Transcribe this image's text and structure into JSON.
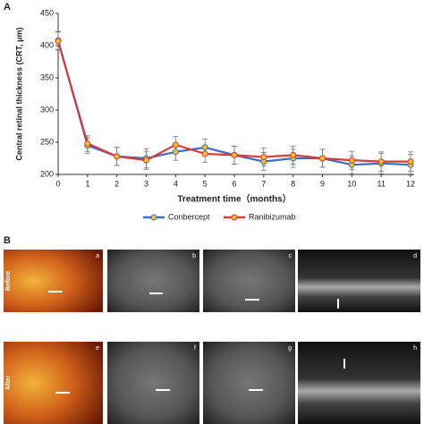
{
  "chart_data": {
    "type": "line",
    "panel": "A",
    "x_label": "Treatment time（months）",
    "y_label": "Central retinal thickness (CRT, μm)",
    "x": [
      0,
      1,
      2,
      3,
      4,
      5,
      6,
      7,
      8,
      9,
      10,
      11,
      12
    ],
    "xlim": [
      0,
      12
    ],
    "xticks": [
      0,
      1,
      2,
      3,
      4,
      5,
      6,
      7,
      8,
      9,
      10,
      11,
      12
    ],
    "ylim": [
      200,
      450
    ],
    "yticks": [
      200,
      250,
      300,
      350,
      400,
      450
    ],
    "marker_color": "#f2c523",
    "error_color": "#777777",
    "legend": "bottom",
    "series": [
      {
        "name": "Conbercept",
        "color": "#3a6fc4",
        "values": [
          408,
          245,
          228,
          225,
          235,
          242,
          230,
          220,
          225,
          225,
          215,
          217,
          215
        ],
        "errors": [
          14,
          12,
          14,
          15,
          13,
          13,
          14,
          14,
          14,
          14,
          14,
          16,
          16
        ]
      },
      {
        "name": "Ranibizumab",
        "color": "#d93a3a",
        "values": [
          407,
          248,
          228,
          222,
          246,
          232,
          230,
          227,
          230,
          225,
          222,
          220,
          220
        ],
        "errors": [
          14,
          12,
          14,
          14,
          13,
          13,
          14,
          14,
          14,
          14,
          14,
          15,
          15
        ]
      }
    ]
  },
  "photo_panel": {
    "label": "B",
    "rows": [
      "Before",
      "After"
    ],
    "letters": [
      [
        "a",
        "b",
        "c",
        "d"
      ],
      [
        "e",
        "f",
        "g",
        "h"
      ]
    ]
  }
}
